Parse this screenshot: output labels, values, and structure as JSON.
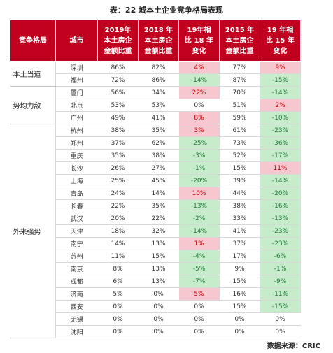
{
  "title": "表：22 城本土企业竞争格局表现",
  "headers": {
    "group": "竞争格局",
    "city": "城市",
    "y2019": [
      "2019年",
      "本土房企",
      "金额比重"
    ],
    "y2018": [
      "2018 年",
      "本土房企",
      "金额比重"
    ],
    "chg19": [
      "19年相",
      "比 18 年",
      "变化"
    ],
    "y2015": [
      "2015 年",
      "本土房企",
      "金额比重"
    ],
    "chg15": [
      "19 年相",
      "比 15 年",
      "变化"
    ]
  },
  "groups": [
    {
      "label": "本土当道",
      "rows": [
        {
          "city": "深圳",
          "y2019": "86%",
          "y2018": "82%",
          "chg19": "4%",
          "y2015": "77%",
          "chg15": "9%"
        },
        {
          "city": "福州",
          "y2019": "72%",
          "y2018": "86%",
          "chg19": "-14%",
          "y2015": "87%",
          "chg15": "-15%"
        }
      ]
    },
    {
      "label": "势均力敌",
      "rows": [
        {
          "city": "厦门",
          "y2019": "56%",
          "y2018": "34%",
          "chg19": "22%",
          "y2015": "70%",
          "chg15": "-14%"
        },
        {
          "city": "北京",
          "y2019": "53%",
          "y2018": "53%",
          "chg19": "0%",
          "y2015": "51%",
          "chg15": "2%"
        },
        {
          "city": "广州",
          "y2019": "49%",
          "y2018": "41%",
          "chg19": "8%",
          "y2015": "59%",
          "chg15": "-10%"
        }
      ]
    },
    {
      "label": "外来强势",
      "rows": [
        {
          "city": "杭州",
          "y2019": "38%",
          "y2018": "35%",
          "chg19": "3%",
          "y2015": "61%",
          "chg15": "-23%"
        },
        {
          "city": "郑州",
          "y2019": "37%",
          "y2018": "62%",
          "chg19": "-25%",
          "y2015": "73%",
          "chg15": "-36%"
        },
        {
          "city": "重庆",
          "y2019": "35%",
          "y2018": "38%",
          "chg19": "-3%",
          "y2015": "52%",
          "chg15": "-17%"
        },
        {
          "city": "长沙",
          "y2019": "26%",
          "y2018": "27%",
          "chg19": "-1%",
          "y2015": "15%",
          "chg15": "11%"
        },
        {
          "city": "上海",
          "y2019": "25%",
          "y2018": "45%",
          "chg19": "-20%",
          "y2015": "39%",
          "chg15": "-14%"
        },
        {
          "city": "青岛",
          "y2019": "24%",
          "y2018": "14%",
          "chg19": "10%",
          "y2015": "44%",
          "chg15": "-20%"
        },
        {
          "city": "长春",
          "y2019": "22%",
          "y2018": "35%",
          "chg19": "-13%",
          "y2015": "38%",
          "chg15": "-16%"
        },
        {
          "city": "武汉",
          "y2019": "20%",
          "y2018": "22%",
          "chg19": "-2%",
          "y2015": "33%",
          "chg15": "-13%"
        },
        {
          "city": "天津",
          "y2019": "18%",
          "y2018": "32%",
          "chg19": "-14%",
          "y2015": "41%",
          "chg15": "-23%"
        },
        {
          "city": "南宁",
          "y2019": "14%",
          "y2018": "13%",
          "chg19": "1%",
          "y2015": "37%",
          "chg15": "-23%"
        },
        {
          "city": "苏州",
          "y2019": "11%",
          "y2018": "15%",
          "chg19": "-4%",
          "y2015": "17%",
          "chg15": "-6%"
        },
        {
          "city": "南京",
          "y2019": "8%",
          "y2018": "13%",
          "chg19": "-5%",
          "y2015": "9%",
          "chg15": "-1%"
        },
        {
          "city": "成都",
          "y2019": "6%",
          "y2018": "13%",
          "chg19": "-7%",
          "y2015": "15%",
          "chg15": "-9%"
        },
        {
          "city": "济南",
          "y2019": "5%",
          "y2018": "0%",
          "chg19": "5%",
          "y2015": "16%",
          "chg15": "-11%"
        },
        {
          "city": "西安",
          "y2019": "0%",
          "y2018": "0%",
          "chg19": "0%",
          "y2015": "15%",
          "chg15": "-15%"
        },
        {
          "city": "无锡",
          "y2019": "0%",
          "y2018": "0%",
          "chg19": "0%",
          "y2015": "0%",
          "chg15": "0%"
        },
        {
          "city": "沈阳",
          "y2019": "0%",
          "y2018": "0%",
          "chg19": "0%",
          "y2015": "0%",
          "chg15": "0%"
        }
      ]
    }
  ],
  "colors": {
    "header_bg": "#c0001e",
    "increase_bg": "#f7c7cf",
    "increase_text": "#c00000",
    "decrease_bg": "#c7eccc",
    "decrease_text": "#1d7a33"
  },
  "source": "数据来源：CRIC"
}
